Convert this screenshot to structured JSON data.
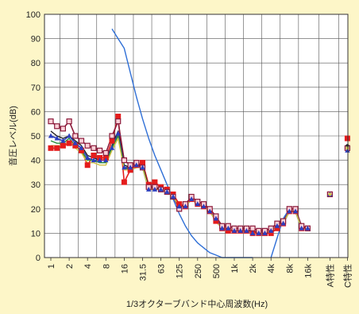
{
  "chart_data": {
    "type": "line",
    "xlabel": "1/3オクターブバンド中心周波数(Hz)",
    "ylabel": "音圧レベル(dB)",
    "ylim": [
      0,
      100
    ],
    "yticks": [
      0,
      10,
      20,
      30,
      40,
      50,
      60,
      70,
      80,
      90,
      100
    ],
    "grid": true,
    "x_tick_labels": [
      "1",
      "2",
      "4",
      "8",
      "16",
      "31.5",
      "63",
      "125",
      "250",
      "500",
      "1k",
      "2k",
      "4k",
      "8k",
      "16k",
      "A特性",
      "C特性"
    ],
    "bands": [
      "1",
      "1.25",
      "1.6",
      "2",
      "2.5",
      "3.15",
      "4",
      "5",
      "6.3",
      "8",
      "10",
      "12.5",
      "16",
      "20",
      "25",
      "31.5",
      "40",
      "50",
      "63",
      "80",
      "100",
      "125",
      "160",
      "200",
      "250",
      "315",
      "400",
      "500",
      "630",
      "800",
      "1k",
      "1.25k",
      "1.6k",
      "2k",
      "2.5k",
      "3.15k",
      "4k",
      "5k",
      "6.3k",
      "8k",
      "10k",
      "12.5k",
      "16k"
    ],
    "series": [
      {
        "color": "#e41c1c",
        "marker": "square-filled",
        "values": [
          45,
          45,
          46,
          47,
          46,
          44,
          38,
          42,
          41,
          41,
          48,
          58,
          31,
          36,
          38,
          39,
          30,
          31,
          29,
          28,
          26,
          22,
          21,
          24,
          22,
          21,
          19,
          15,
          12,
          11,
          11,
          11,
          11,
          10,
          10,
          10,
          10,
          12,
          14,
          19,
          19,
          12,
          12
        ],
        "A": 26,
        "C": 49
      },
      {
        "color": "#8b1a3a",
        "marker": "square-open",
        "values": [
          56,
          54,
          53,
          56,
          50,
          48,
          46,
          45,
          44,
          43,
          50,
          56,
          40,
          38,
          39,
          37,
          29,
          29,
          28,
          27,
          25,
          20,
          22,
          25,
          23,
          22,
          20,
          17,
          13,
          13,
          12,
          12,
          12,
          12,
          11,
          11,
          12,
          14,
          15,
          20,
          20,
          13,
          12
        ],
        "A": 26,
        "C": 45
      },
      {
        "color": "#222222",
        "marker": "none",
        "values": [
          52,
          50,
          49,
          50,
          48,
          46,
          42,
          41,
          40,
          40,
          46,
          52,
          38,
          37,
          38,
          38,
          29,
          29,
          28,
          27,
          25,
          21,
          21,
          24,
          22,
          21,
          19,
          16,
          12,
          12,
          11,
          11,
          11,
          11,
          10,
          10,
          11,
          13,
          14,
          19,
          19,
          12,
          12
        ],
        "A": 26,
        "C": 46
      },
      {
        "color": "#2c3fbf",
        "marker": "triangle",
        "values": [
          50,
          49,
          48,
          50,
          47,
          45,
          41,
          40,
          40,
          40,
          45,
          51,
          37,
          37,
          38,
          37,
          28,
          28,
          28,
          27,
          25,
          21,
          21,
          24,
          22,
          21,
          19,
          16,
          12,
          12,
          11,
          11,
          11,
          10,
          10,
          10,
          11,
          13,
          14,
          19,
          19,
          12,
          12
        ],
        "A": 26,
        "C": 44
      },
      {
        "color": "#2a8f3a",
        "marker": "none",
        "values": [
          48,
          47,
          47,
          49,
          46,
          44,
          40,
          40,
          39,
          39,
          45,
          50,
          37,
          36,
          37,
          37,
          28,
          28,
          28,
          27,
          25,
          21,
          21,
          24,
          22,
          21,
          19,
          15,
          12,
          12,
          11,
          11,
          11,
          10,
          10,
          10,
          11,
          13,
          14,
          19,
          19,
          12,
          12
        ],
        "A": 26,
        "C": 45
      },
      {
        "color": "#d4c44a",
        "marker": "none",
        "values": [
          46,
          46,
          46,
          48,
          45,
          43,
          39,
          39,
          38,
          38,
          44,
          49,
          36,
          36,
          37,
          37,
          28,
          28,
          28,
          27,
          25,
          21,
          21,
          24,
          22,
          21,
          19,
          15,
          12,
          12,
          11,
          11,
          11,
          10,
          10,
          10,
          11,
          13,
          14,
          19,
          19,
          12,
          12
        ],
        "A": 26,
        "C": 45
      },
      {
        "color": "#2f6fd6",
        "marker": "none",
        "values": [
          null,
          null,
          null,
          null,
          null,
          null,
          null,
          null,
          null,
          null,
          94,
          90,
          86,
          76,
          66,
          57,
          49,
          42,
          36,
          30,
          24,
          18,
          13,
          9,
          6,
          4,
          2,
          1,
          0,
          0,
          0,
          0,
          0,
          0,
          null,
          null,
          0,
          8,
          16,
          20,
          null,
          null,
          null
        ]
      }
    ]
  }
}
